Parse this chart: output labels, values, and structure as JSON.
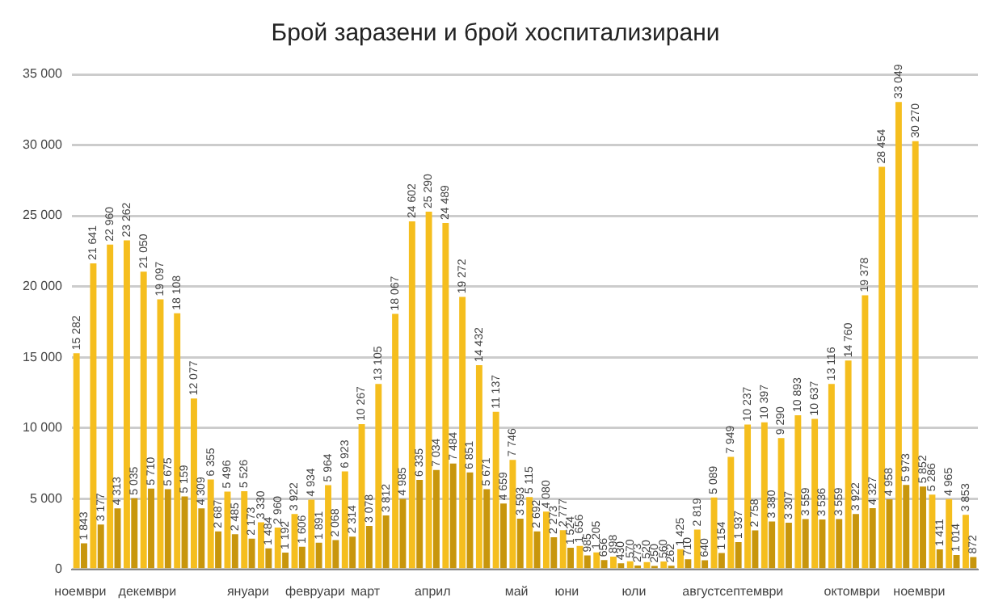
{
  "chart_data": {
    "type": "bar",
    "title": "Брой заразени и брой хоспитализирани",
    "categories": [
      "ноември",
      null,
      null,
      null,
      "декември",
      null,
      null,
      null,
      null,
      null,
      "януари",
      null,
      null,
      null,
      "февруари",
      null,
      null,
      "март",
      null,
      null,
      null,
      "април",
      null,
      null,
      null,
      null,
      "май",
      null,
      null,
      "юни",
      null,
      null,
      null,
      "юли",
      null,
      null,
      null,
      "август",
      null,
      null,
      "септември",
      null,
      null,
      null,
      null,
      null,
      "октомври",
      null,
      null,
      null,
      "ноември",
      null,
      null,
      null
    ],
    "series": [
      {
        "color": "#f5be1e",
        "values": [
          15282,
          21641,
          22960,
          23262,
          21050,
          19097,
          18108,
          12077,
          6355,
          5496,
          5526,
          3330,
          2960,
          3922,
          4934,
          5964,
          6923,
          10267,
          13105,
          18067,
          24602,
          25290,
          24489,
          19272,
          14432,
          11137,
          7746,
          5115,
          4080,
          2777,
          1656,
          1205,
          898,
          570,
          520,
          560,
          1425,
          2819,
          5089,
          7949,
          10237,
          10397,
          9290,
          10893,
          10637,
          13116,
          14760,
          19378,
          28454,
          33049,
          30270,
          5286,
          4965,
          3853
        ]
      },
      {
        "color": "#c8960c",
        "values": [
          1843,
          3177,
          4313,
          5035,
          5710,
          5675,
          5159,
          4309,
          2687,
          2485,
          2173,
          1484,
          1192,
          1606,
          1891,
          2068,
          2314,
          3078,
          3812,
          4985,
          6335,
          7034,
          7484,
          6851,
          5671,
          4659,
          3593,
          2692,
          2273,
          1524,
          985,
          656,
          430,
          273,
          250,
          262,
          710,
          640,
          1154,
          1937,
          2758,
          3380,
          3307,
          3559,
          3536,
          3559,
          3922,
          4327,
          4958,
          5973,
          5852,
          1411,
          1014,
          872
        ]
      }
    ],
    "ylim": [
      0,
      35000
    ],
    "yticks": [
      0,
      {
        "value": 5000,
        "label": "5 000"
      },
      {
        "value": 10000,
        "label": "10 000"
      },
      {
        "value": 15000,
        "label": "15 000"
      },
      {
        "value": 20000,
        "label": "20 000"
      },
      {
        "value": 25000,
        "label": "25 000"
      },
      {
        "value": 30000,
        "label": "30 000"
      },
      {
        "value": 35000,
        "label": "35 000"
      }
    ],
    "grid": "y",
    "legend": false,
    "data_labels": true
  }
}
